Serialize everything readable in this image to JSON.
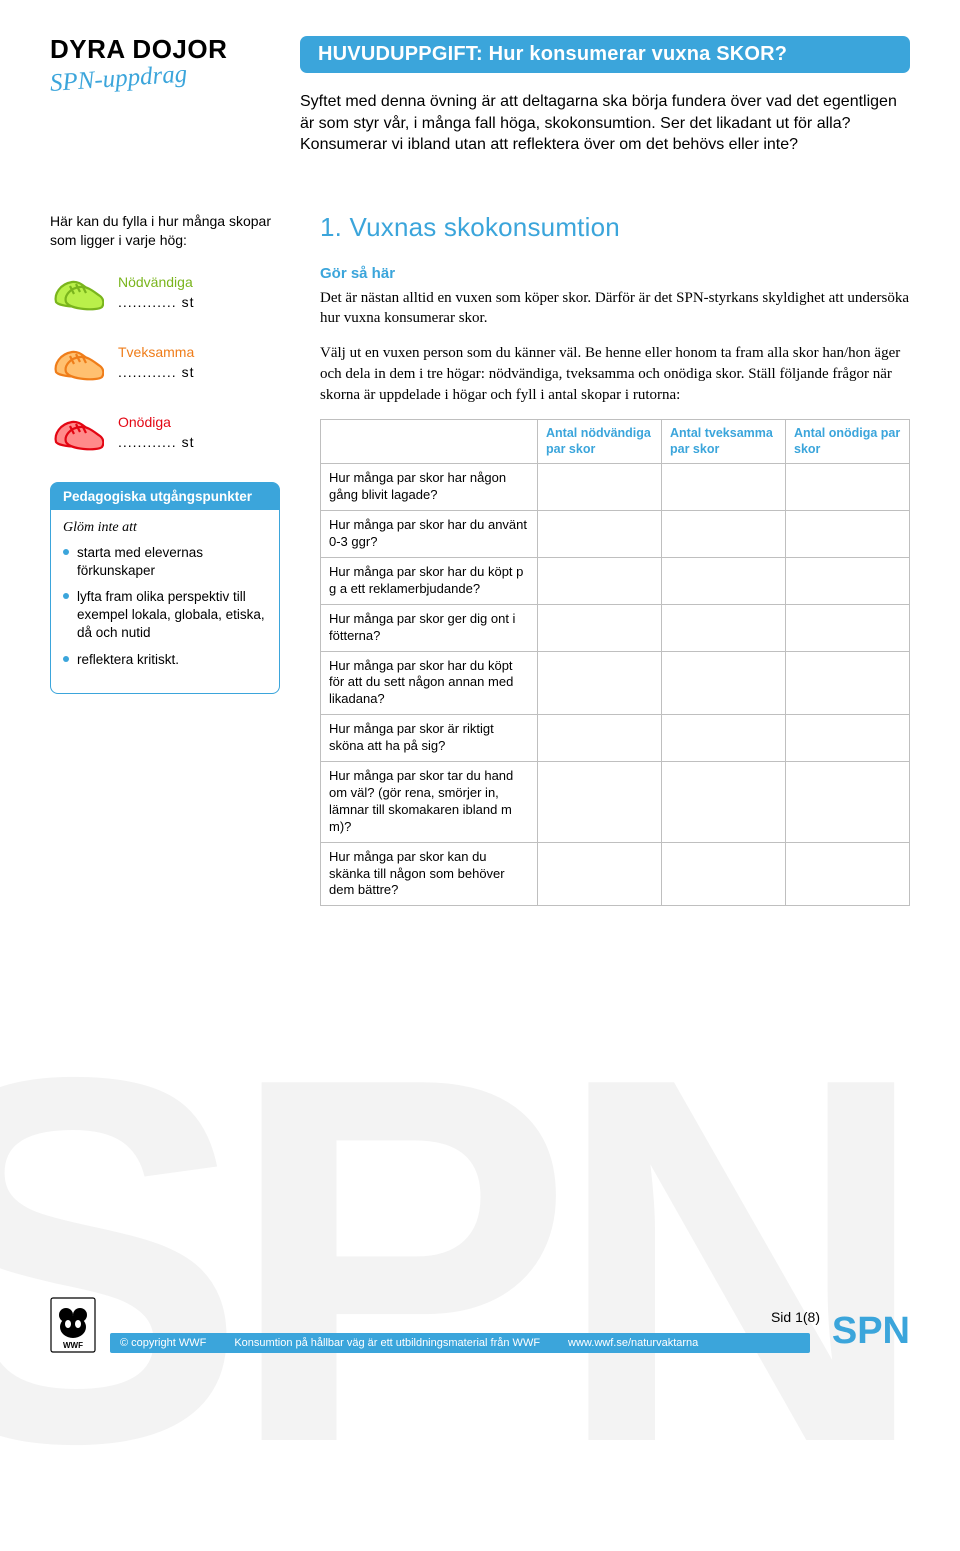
{
  "colors": {
    "accent": "#3ba5db",
    "green": "#7ab51d",
    "orange": "#ef7d1a",
    "red": "#e30613",
    "border": "#bfbfbf",
    "watermark": "#f3f3f3",
    "text": "#000000",
    "white": "#ffffff"
  },
  "header": {
    "title": "DYRA DOJOR",
    "subtitle": "SPN-uppdrag",
    "huvud": "HUVUDUPPGIFT: Hur konsumerar vuxna SKOR?",
    "intro": "Syftet med denna övning är att deltagarna ska börja fundera över vad det egentligen är som styr vår, i många fall höga, skokonsumtion. Ser det likadant ut för alla? Konsumerar vi ibland utan att reflektera över om det behövs eller inte?"
  },
  "sidebar": {
    "lead": "Här kan du fylla i hur många skopar som ligger i varje hög:",
    "items": [
      {
        "label": "Nödvändiga",
        "count": "............ st",
        "color": "#7ab51d"
      },
      {
        "label": "Tveksamma",
        "count": "............ st",
        "color": "#ef7d1a"
      },
      {
        "label": "Onödiga",
        "count": "............ st",
        "color": "#e30613"
      }
    ],
    "ped": {
      "header": "Pedagogiska utgångspunkter",
      "glom": "Glöm inte att",
      "bullets": [
        "starta med elevernas förkunskaper",
        "lyfta fram olika perspektiv till exempel lokala, globala, etiska, då och nutid",
        "reflektera kritiskt."
      ]
    }
  },
  "main": {
    "section_title": "1. Vuxnas skokonsumtion",
    "gor": "Gör så här",
    "para1": "Det är nästan alltid en vuxen som köper skor. Därför är det SPN-styrkans skyldighet att undersöka hur vuxna konsumerar skor.",
    "para2": "Välj ut en vuxen person som du känner väl. Be henne eller honom ta fram alla skor han/hon äger och dela in dem i tre högar: nödvändiga, tveksamma och onödiga skor. Ställ följande frågor när skorna är uppdelade i högar och fyll i antal skopar i rutorna:",
    "table": {
      "columns": [
        "",
        "Antal nödvändiga par skor",
        "Antal tveksamma par skor",
        "Antal onödiga par skor"
      ],
      "rows": [
        "Hur många par skor har någon gång blivit lagade?",
        "Hur många par skor har du använt 0-3 ggr?",
        "Hur många par skor har du köpt p g a ett reklamerbjudande?",
        "Hur många par skor ger dig ont i fötterna?",
        "Hur många par skor har du köpt för att du sett någon annan med likadana?",
        "Hur många par skor är riktigt sköna att ha på sig?",
        "Hur många par skor tar du hand om väl? (gör rena, smörjer in, lämnar till skomakaren ibland m m)?",
        "Hur många par skor kan du skänka till någon som behöver dem bättre?"
      ]
    }
  },
  "footer": {
    "copyright": "© copyright WWF",
    "mid": "Konsumtion på hållbar väg är ett utbildningsmaterial från WWF",
    "url": "www.wwf.se/naturvaktarna",
    "page": "Sid 1(8)",
    "spn": "SPN"
  },
  "watermark": "SPN"
}
